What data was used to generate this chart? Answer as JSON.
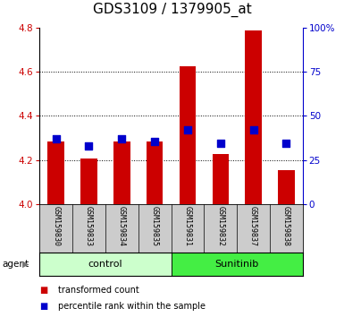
{
  "title": "GDS3109 / 1379905_at",
  "samples": [
    "GSM159830",
    "GSM159833",
    "GSM159834",
    "GSM159835",
    "GSM159831",
    "GSM159832",
    "GSM159837",
    "GSM159838"
  ],
  "red_values": [
    4.285,
    4.205,
    4.285,
    4.285,
    4.625,
    4.225,
    4.79,
    4.155
  ],
  "blue_values": [
    4.295,
    4.265,
    4.295,
    4.283,
    4.335,
    4.275,
    4.335,
    4.275
  ],
  "ylim_left": [
    4.0,
    4.8
  ],
  "yticks_left": [
    4.0,
    4.2,
    4.4,
    4.6,
    4.8
  ],
  "yticks_right": [
    0,
    25,
    50,
    75,
    100
  ],
  "ytick_labels_right": [
    "0",
    "25",
    "50",
    "75",
    "100%"
  ],
  "group_colors": [
    "#ccffcc",
    "#44ee44"
  ],
  "bar_color": "#cc0000",
  "dot_color": "#0000cc",
  "bar_width": 0.5,
  "dot_size": 40,
  "legend_items": [
    "transformed count",
    "percentile rank within the sample"
  ],
  "base_value": 4.0,
  "right_axis_color": "#0000cc",
  "left_axis_color": "#cc0000",
  "label_area_color": "#cccccc",
  "title_fontsize": 11,
  "tick_fontsize": 7.5
}
